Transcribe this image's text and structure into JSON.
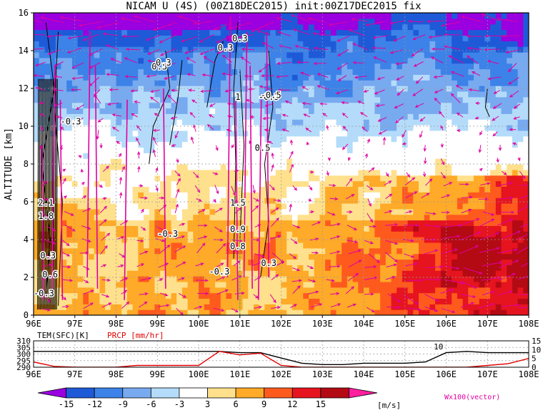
{
  "chart_data": [
    {
      "type": "heatmap",
      "title": "NICAM U (4S) (00Z18DEC2015) init:00Z17DEC2015 fix",
      "xlabel": "",
      "ylabel": "ALTITUDE [km]",
      "xlim": [
        96,
        108
      ],
      "ylim": [
        0,
        16
      ],
      "x_ticks": [
        "96E",
        "97E",
        "98E",
        "99E",
        "100E",
        "101E",
        "102E",
        "103E",
        "104E",
        "105E",
        "106E",
        "107E",
        "108E"
      ],
      "y_ticks": [
        "0",
        "2",
        "4",
        "6",
        "8",
        "10",
        "12",
        "14",
        "16"
      ],
      "contour_labels": [
        "0.3",
        "0.3",
        "0.3",
        "0.3",
        "-0.3",
        "-0.3",
        "-0.3",
        "-0.3",
        "-0.5",
        "0.5",
        "1.5",
        "0.9",
        "0.8",
        "1",
        "0.3",
        "1.8",
        "2.1",
        "0.6",
        "0.3",
        "-0.3"
      ],
      "colorbar": {
        "levels": [
          -15,
          -12,
          -9,
          -6,
          -3,
          3,
          6,
          9,
          12,
          15
        ],
        "level_labels": [
          "-15",
          "-12",
          "-9",
          "-6",
          "-3",
          "3",
          "6",
          "9",
          "12",
          "15"
        ],
        "colors": [
          "#9a00e0",
          "#1e5ad8",
          "#3c82e8",
          "#78aaf0",
          "#b4dcfa",
          "#ffffff",
          "#ffe08c",
          "#ffaa28",
          "#ff5a1e",
          "#e6141e",
          "#b40a14",
          "#ff1ea0"
        ],
        "units": "[m/s]"
      },
      "vector_label": "Wx100(vector)",
      "vector_color": "#e000a0"
    },
    {
      "type": "line",
      "title": "",
      "x": [
        96.0,
        96.5,
        97.0,
        97.5,
        98.0,
        98.5,
        99.0,
        99.5,
        100.0,
        100.5,
        101.0,
        101.5,
        102.0,
        102.5,
        103.0,
        103.5,
        104.0,
        104.5,
        105.0,
        105.5,
        106.0,
        106.5,
        107.0,
        107.5,
        108.0
      ],
      "xlim": [
        96,
        108
      ],
      "x_ticks": [
        "96E",
        "97E",
        "98E",
        "99E",
        "100E",
        "101E",
        "102E",
        "103E",
        "104E",
        "105E",
        "106E",
        "107E",
        "108E"
      ],
      "series": [
        {
          "name": "TEM(SFC)[K]",
          "axis": "left",
          "color": "#000000",
          "values": [
            302,
            302,
            302,
            302,
            302,
            302,
            302,
            302,
            302,
            302,
            301,
            301,
            297,
            293,
            292,
            292,
            293,
            293,
            293,
            294,
            301,
            302,
            301,
            301,
            301
          ]
        },
        {
          "name": "PRCP [mm/hr]",
          "axis": "right",
          "color": "#e00000",
          "values": [
            3,
            0.5,
            0,
            0,
            0,
            1,
            1,
            1,
            1,
            9,
            7,
            8,
            1,
            0,
            0,
            0,
            0,
            0,
            0,
            0,
            0,
            0,
            1,
            2,
            5
          ]
        }
      ],
      "ylim_left": [
        290,
        310
      ],
      "ylim_right": [
        0,
        15
      ],
      "y_ticks_left": [
        "290",
        "295",
        "300",
        "305",
        "310"
      ],
      "y_ticks_right": [
        "0",
        "5",
        "10",
        "15"
      ],
      "annotations": [
        "10"
      ]
    }
  ]
}
